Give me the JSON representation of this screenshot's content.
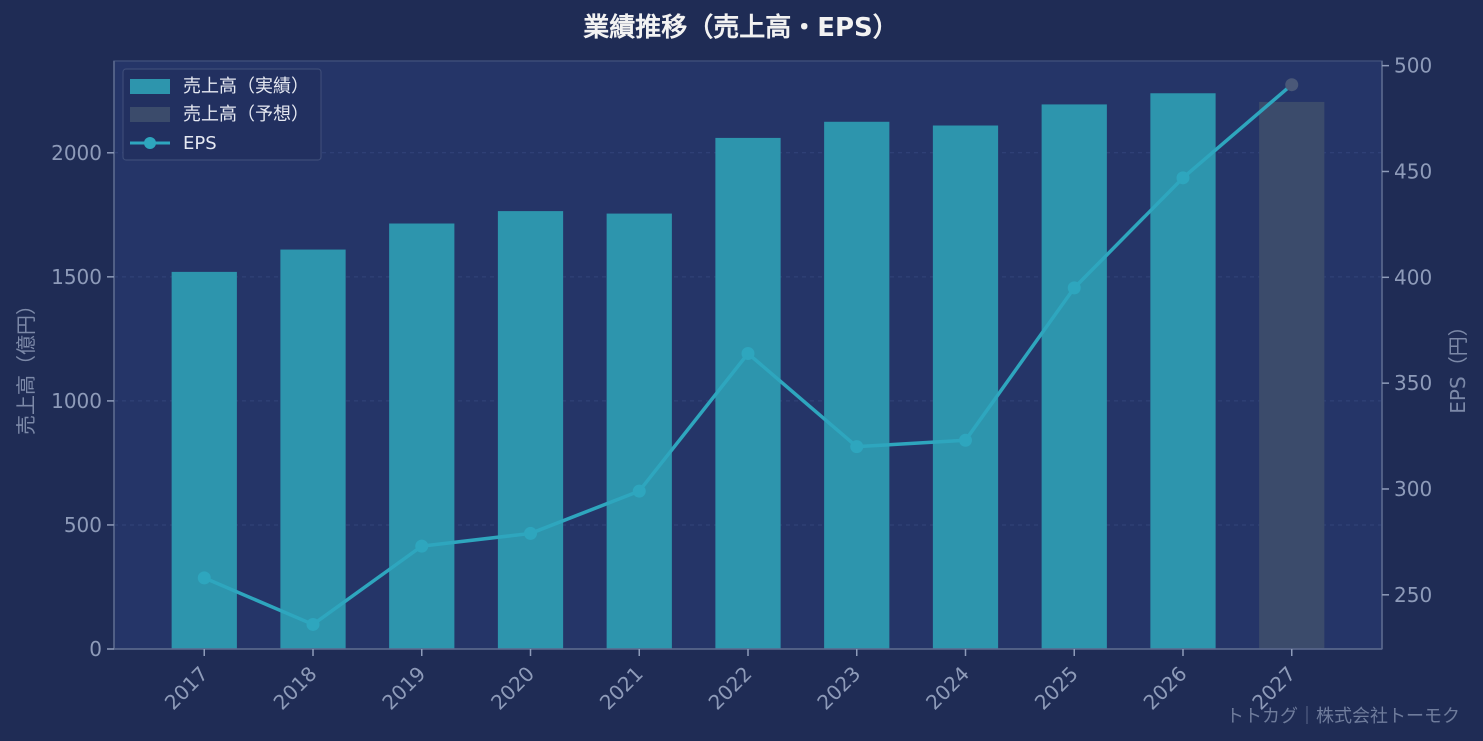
{
  "chart_data": {
    "type": "bar",
    "title": "業績推移（売上高・EPS）",
    "xlabel": "",
    "ylabel": "売上高（億円）",
    "y2label": "EPS（円）",
    "categories": [
      "2017",
      "2018",
      "2019",
      "2020",
      "2021",
      "2022",
      "2023",
      "2024",
      "2025",
      "2026",
      "2027"
    ],
    "series": [
      {
        "name": "売上高（実績）",
        "type": "bar",
        "axis": "left",
        "color": "#2d95ad",
        "values": [
          1520,
          1610,
          1715,
          1765,
          1755,
          2060,
          2125,
          2110,
          2195,
          2240,
          null
        ]
      },
      {
        "name": "売上高（予想）",
        "type": "bar",
        "axis": "left",
        "color": "#3b4b6b",
        "values": [
          null,
          null,
          null,
          null,
          null,
          null,
          null,
          null,
          null,
          null,
          2205
        ]
      },
      {
        "name": "EPS",
        "type": "line",
        "axis": "right",
        "color": "#2ea6be",
        "forecast_marker_color": "#4a5878",
        "values": [
          258,
          236,
          273,
          279,
          299,
          364,
          320,
          323,
          395,
          447,
          491
        ]
      }
    ],
    "ylim": [
      0,
      2370
    ],
    "y2lim": [
      224.4,
      502.2
    ],
    "yticks": [
      0,
      500,
      1000,
      1500,
      2000
    ],
    "y2ticks": [
      250,
      300,
      350,
      400,
      450,
      500
    ],
    "grid": true,
    "legend_position": "top-left"
  },
  "legend": {
    "actual": "売上高（実績）",
    "forecast": "売上高（予想）",
    "eps": "EPS"
  },
  "footer": "トトカグ｜株式会社トーモク",
  "colors": {
    "background": "#1f2c55",
    "plot_background": "#253568",
    "actual_bar": "#2d95ad",
    "forecast_bar": "#3b4b6b",
    "eps_line": "#2ea6be"
  }
}
